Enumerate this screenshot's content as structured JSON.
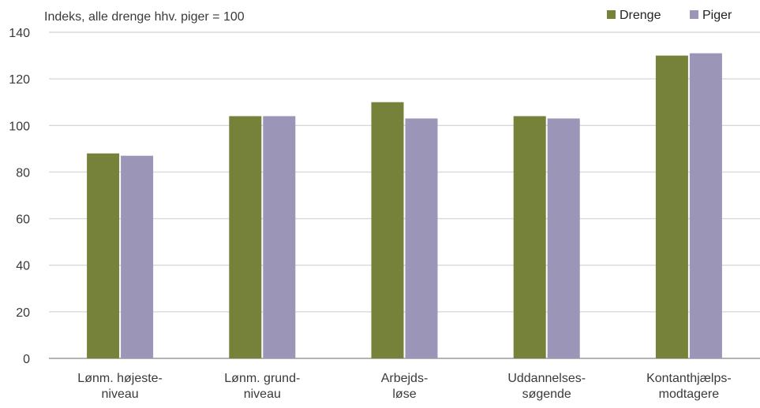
{
  "chart_data": {
    "type": "bar",
    "ylabel": "Indeks, alle drenge hhv. piger = 100",
    "ylim": [
      0,
      140
    ],
    "yticks": [
      0,
      20,
      40,
      60,
      80,
      100,
      120,
      140
    ],
    "grid": true,
    "legend_position": "top-right",
    "categories": [
      [
        "Lønm. højeste-",
        "niveau"
      ],
      [
        "Lønm. grund-",
        "niveau"
      ],
      [
        "Arbejds-",
        "løse"
      ],
      [
        "Uddannelses-",
        "søgende"
      ],
      [
        "Kontanthjælps-",
        "modtagere"
      ]
    ],
    "series": [
      {
        "name": "Drenge",
        "color": "#76813a",
        "values": [
          88,
          104,
          110,
          104,
          130
        ]
      },
      {
        "name": "Piger",
        "color": "#9b95b8",
        "values": [
          87,
          104,
          103,
          103,
          131
        ]
      }
    ]
  }
}
